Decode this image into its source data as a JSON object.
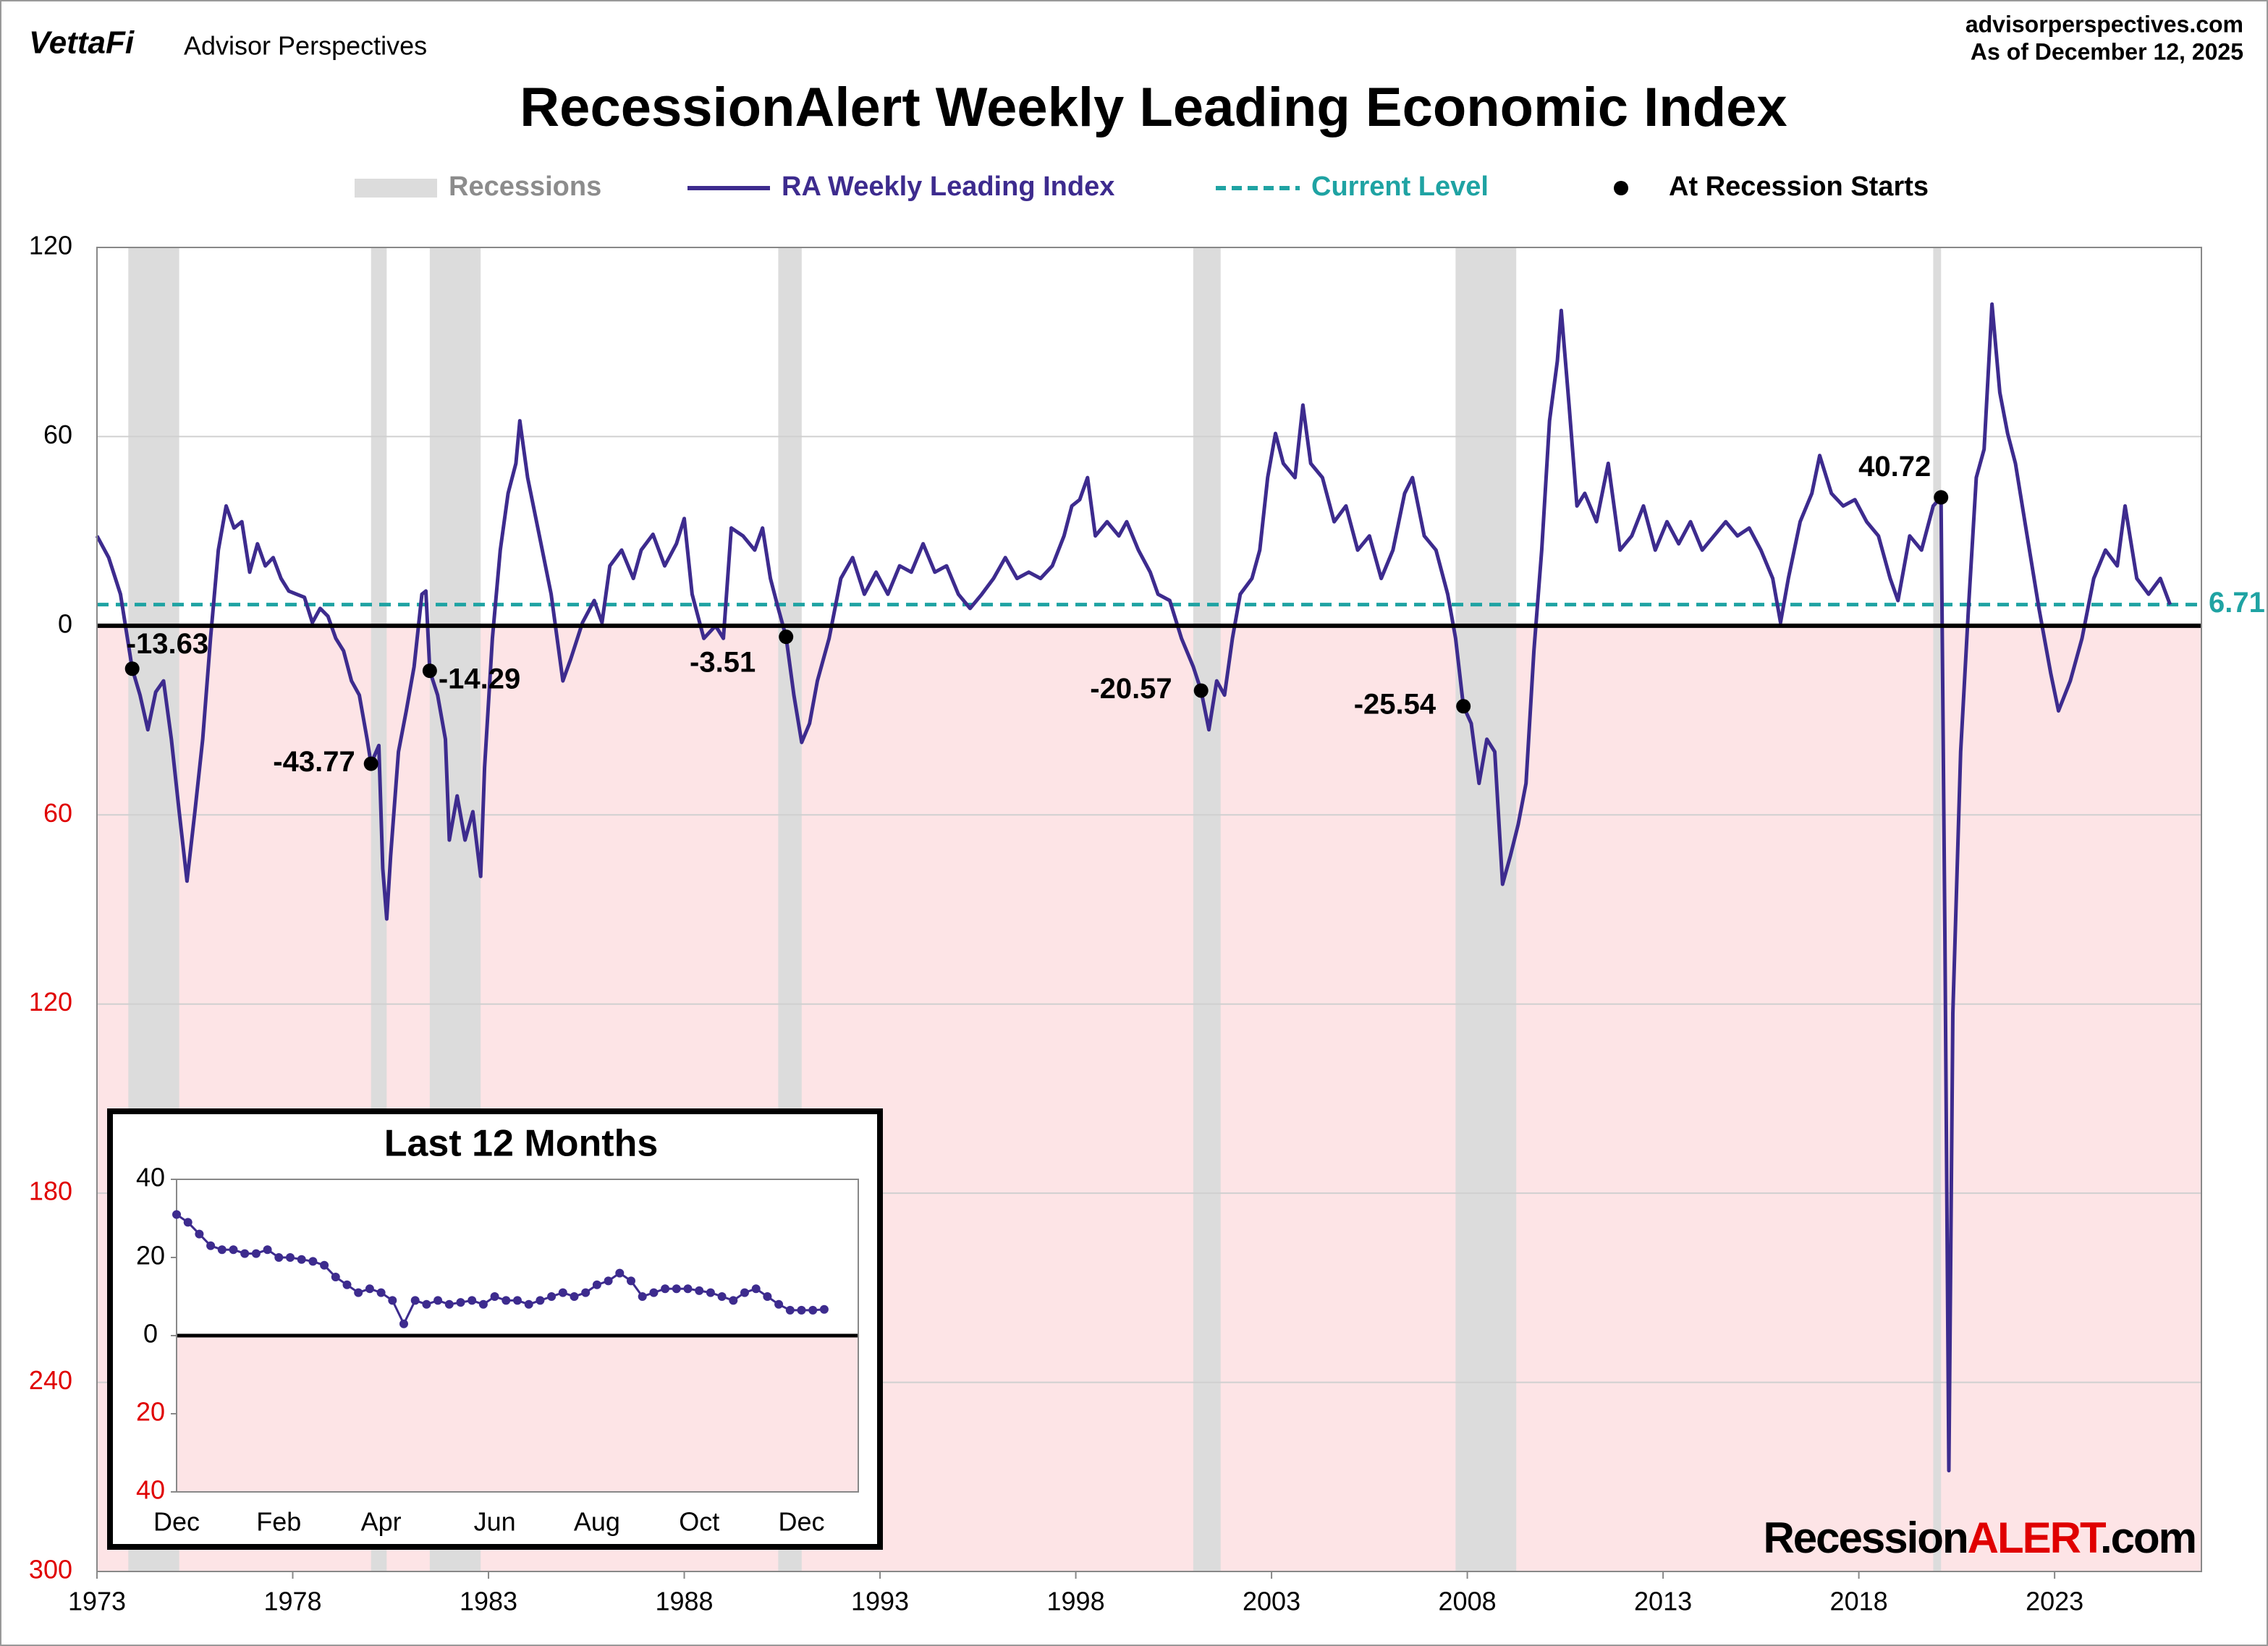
{
  "header": {
    "logo": "VettaFi",
    "publisher": "Advisor Perspectives",
    "site": "advisorperspectives.com",
    "date": "As of December 12, 2025"
  },
  "watermark": [
    "Recession",
    "ALERT",
    ".com"
  ],
  "chart_data": [
    {
      "type": "line",
      "title": "RecessionAlert Weekly Leading Economic Index",
      "xlim": [
        1973,
        2026.75
      ],
      "xticks": [
        1973,
        1978,
        1983,
        1988,
        1993,
        1998,
        2003,
        2008,
        2013,
        2018,
        2023
      ],
      "ylim": [
        -300,
        120
      ],
      "yticks": [
        120,
        60,
        0,
        {
          "value": -60,
          "label": "60"
        },
        {
          "value": -120,
          "label": "120"
        },
        {
          "value": -180,
          "label": "180"
        },
        {
          "value": -240,
          "label": "240"
        },
        {
          "value": -300,
          "label": "300"
        }
      ],
      "grid": true,
      "negative_tick_color": "#e00000",
      "below_zero_color": "#fde4e6",
      "recessions": {
        "name": "Recessions",
        "color": "#dcdcdc",
        "periods": [
          [
            1973.8,
            1975.1
          ],
          [
            1980.0,
            1980.4
          ],
          [
            1981.5,
            1982.8
          ],
          [
            1990.4,
            1991.0
          ],
          [
            2001.0,
            2001.7
          ],
          [
            2007.7,
            2009.25
          ],
          [
            2019.9,
            2020.1
          ]
        ]
      },
      "series": [
        {
          "name": "RA Weekly Leading Index",
          "color": "#3d2b8e",
          "x": [
            1973,
            1973.3,
            1973.6,
            1973.9,
            1974.1,
            1974.3,
            1974.5,
            1974.7,
            1974.9,
            1975.1,
            1975.3,
            1975.5,
            1975.7,
            1975.9,
            1976.1,
            1976.3,
            1976.5,
            1976.7,
            1976.9,
            1977.1,
            1977.3,
            1977.5,
            1977.7,
            1977.9,
            1978.1,
            1978.3,
            1978.5,
            1978.7,
            1978.9,
            1979.1,
            1979.3,
            1979.5,
            1979.7,
            1979.9,
            1980,
            1980.2,
            1980.3,
            1980.4,
            1980.5,
            1980.7,
            1980.9,
            1981.1,
            1981.3,
            1981.4,
            1981.5,
            1981.7,
            1981.9,
            1982,
            1982.2,
            1982.4,
            1982.6,
            1982.8,
            1982.9,
            1983.1,
            1983.3,
            1983.5,
            1983.7,
            1983.8,
            1984,
            1984.3,
            1984.6,
            1984.9,
            1985.1,
            1985.4,
            1985.7,
            1985.9,
            1986.1,
            1986.4,
            1986.7,
            1986.9,
            1987.2,
            1987.5,
            1987.8,
            1988,
            1988.2,
            1988.5,
            1988.8,
            1989,
            1989.2,
            1989.5,
            1989.8,
            1990,
            1990.2,
            1990.4,
            1990.6,
            1990.8,
            1991,
            1991.2,
            1991.4,
            1991.7,
            1992,
            1992.3,
            1992.6,
            1992.9,
            1993.2,
            1993.5,
            1993.8,
            1994.1,
            1994.4,
            1994.7,
            1995,
            1995.3,
            1995.6,
            1995.9,
            1996.2,
            1996.5,
            1996.8,
            1997.1,
            1997.4,
            1997.7,
            1997.9,
            1998.1,
            1998.3,
            1998.5,
            1998.8,
            1999.1,
            1999.3,
            1999.6,
            1999.9,
            2000.1,
            2000.4,
            2000.7,
            2001,
            2001.2,
            2001.4,
            2001.6,
            2001.8,
            2002,
            2002.2,
            2002.5,
            2002.7,
            2002.9,
            2003.1,
            2003.3,
            2003.6,
            2003.8,
            2004,
            2004.3,
            2004.6,
            2004.9,
            2005.2,
            2005.5,
            2005.8,
            2006.1,
            2006.4,
            2006.6,
            2006.9,
            2007.2,
            2007.5,
            2007.7,
            2007.9,
            2008.1,
            2008.3,
            2008.5,
            2008.7,
            2008.9,
            2009.1,
            2009.3,
            2009.5,
            2009.7,
            2009.9,
            2010.1,
            2010.3,
            2010.4,
            2010.6,
            2010.8,
            2011,
            2011.3,
            2011.6,
            2011.9,
            2012.2,
            2012.5,
            2012.8,
            2013.1,
            2013.4,
            2013.7,
            2014,
            2014.3,
            2014.6,
            2014.9,
            2015.2,
            2015.5,
            2015.8,
            2016,
            2016.2,
            2016.5,
            2016.8,
            2017,
            2017.3,
            2017.6,
            2017.9,
            2018.2,
            2018.5,
            2018.8,
            2019,
            2019.3,
            2019.6,
            2019.9,
            2020.1,
            2020.2,
            2020.3,
            2020.4,
            2020.6,
            2020.8,
            2021,
            2021.2,
            2021.4,
            2021.6,
            2021.8,
            2022,
            2022.3,
            2022.6,
            2022.9,
            2023.1,
            2023.4,
            2023.7,
            2024,
            2024.3,
            2024.6,
            2024.8,
            2025.1,
            2025.4,
            2025.7,
            2025.95
          ],
          "values": [
            28.5,
            21.6,
            10,
            -13.63,
            -22,
            -33,
            -21,
            -17.5,
            -36,
            -59,
            -81,
            -59,
            -36,
            -4,
            24,
            38,
            31,
            33,
            17,
            26,
            19,
            21.6,
            15,
            11,
            10,
            9,
            1,
            5.5,
            3,
            -4,
            -8,
            -17.5,
            -22,
            -36,
            -43.77,
            -38,
            -77,
            -93,
            -73,
            -40,
            -27,
            -13,
            10,
            11,
            -14.29,
            -22,
            -36,
            -68,
            -54,
            -68,
            -59,
            -79.5,
            -45,
            -4,
            24,
            42,
            51.5,
            65,
            47,
            28.5,
            10,
            -17.5,
            -10.6,
            1,
            8,
            1,
            19,
            24,
            15,
            24,
            29,
            19,
            26,
            34,
            10,
            -4,
            0,
            -4,
            31,
            28.5,
            24,
            31,
            15,
            5.5,
            -3.51,
            -22,
            -37,
            -31,
            -17.5,
            -4,
            15,
            21.6,
            10,
            17,
            10,
            19,
            17,
            26,
            17,
            19,
            10,
            5.5,
            10,
            15,
            21.6,
            15,
            17,
            15,
            19,
            28.5,
            38,
            40,
            47,
            28.5,
            33,
            28.5,
            33,
            24,
            17,
            10,
            8,
            -4,
            -13,
            -20.57,
            -33,
            -17.5,
            -22,
            -4,
            10,
            15,
            24,
            47,
            61,
            51.5,
            47,
            70,
            51.5,
            47,
            33,
            38,
            24,
            28.5,
            15,
            24,
            42,
            47,
            28.5,
            24,
            10,
            -4,
            -25.54,
            -31,
            -50,
            -36,
            -40,
            -82,
            -73,
            -63,
            -50,
            -8,
            24,
            65,
            84,
            100,
            70,
            38,
            42,
            33,
            51.5,
            24,
            28.5,
            38,
            24,
            33,
            26,
            33,
            24,
            28.5,
            33,
            28.5,
            31,
            24,
            15,
            1,
            15,
            33,
            42,
            54,
            42,
            38,
            40,
            33,
            28.5,
            15,
            8,
            28.5,
            24,
            38,
            40.72,
            -100,
            -268,
            -123,
            -40,
            5.5,
            47,
            56,
            102,
            74,
            61,
            51.5,
            28.5,
            5.5,
            -15,
            -27,
            -17.5,
            -4,
            15,
            24,
            19,
            38,
            15,
            10,
            15,
            6.71
          ]
        }
      ],
      "current_level": {
        "name": "Current Level",
        "color": "#1fa3a3",
        "value": 6.71
      },
      "recession_starts": {
        "name": "At Recession Starts",
        "color": "#000000",
        "x": [
          1973.9,
          1980,
          1981.5,
          1990.6,
          2001.2,
          2007.9,
          2020.1
        ],
        "values": [
          -13.63,
          -43.77,
          -14.29,
          -3.51,
          -20.57,
          -25.54,
          40.72
        ]
      }
    },
    {
      "type": "line",
      "title": "Last 12 Months",
      "color": "#3d2b8e",
      "ylim": [
        -40,
        40
      ],
      "yticks": [
        40,
        20,
        0,
        {
          "value": -20,
          "label": "20"
        },
        {
          "value": -40,
          "label": "40"
        }
      ],
      "negative_tick_color": "#e00000",
      "below_zero_color": "#fde4e6",
      "categories": [
        "Dec",
        null,
        null,
        null,
        null,
        null,
        null,
        null,
        null,
        "Feb",
        null,
        null,
        null,
        null,
        null,
        null,
        null,
        null,
        "Apr",
        null,
        null,
        null,
        null,
        null,
        null,
        null,
        null,
        null,
        "Jun",
        null,
        null,
        null,
        null,
        null,
        null,
        null,
        null,
        "Aug",
        null,
        null,
        null,
        null,
        null,
        null,
        null,
        null,
        "Oct",
        null,
        null,
        null,
        null,
        null,
        null,
        null,
        null,
        "Dec",
        null,
        null
      ],
      "values": [
        31,
        29,
        26,
        23,
        22,
        22,
        21,
        21,
        22,
        20,
        20,
        19.5,
        19,
        18,
        15,
        13,
        11,
        12,
        11,
        9,
        3,
        9,
        8,
        9,
        8,
        8.5,
        9,
        8,
        10,
        9,
        9,
        8,
        9,
        10,
        11,
        10,
        11,
        13,
        14,
        16,
        14,
        10,
        11,
        12,
        12,
        12,
        11.5,
        11,
        10,
        9,
        11,
        12,
        10,
        8,
        6.5,
        6.5,
        6.5,
        6.71
      ]
    }
  ]
}
